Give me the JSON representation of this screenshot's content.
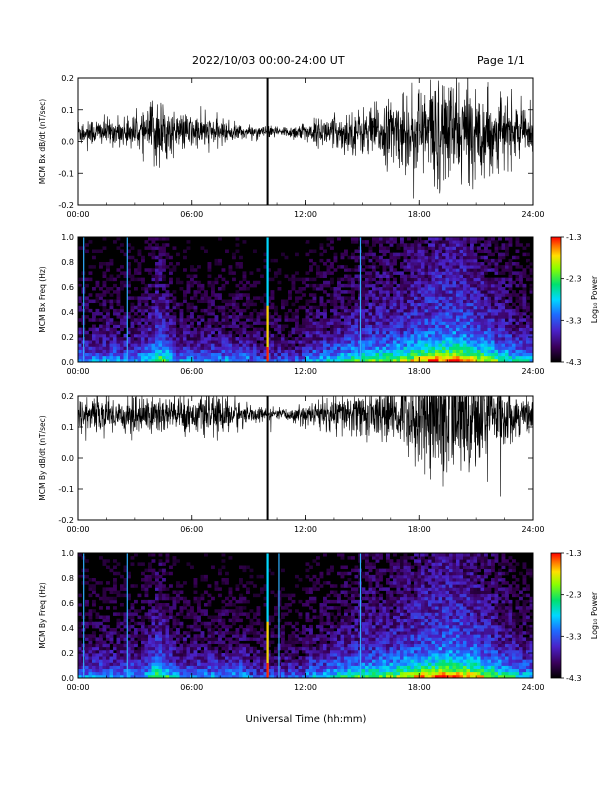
{
  "header": {
    "date_range": "2022/10/03  00:00-24:00 UT",
    "page": "Page 1/1"
  },
  "xlabel": "Universal Time (hh:mm)",
  "chart_data": [
    {
      "type": "line",
      "ylabel": "MCM Bx dB/dt (nT/sec)",
      "xlim": [
        0,
        24
      ],
      "ylim": [
        -0.2,
        0.2
      ],
      "xticks": [
        "00:00",
        "06:00",
        "12:00",
        "18:00",
        "24:00"
      ],
      "yticks": [
        "-0.2",
        "-0.1",
        "0.0",
        "0.1",
        "0.2"
      ],
      "baseline": 0.03,
      "noise_profile": [
        {
          "t": 0,
          "amp": 0.05
        },
        {
          "t": 2,
          "amp": 0.045
        },
        {
          "t": 3.5,
          "amp": 0.06
        },
        {
          "t": 4,
          "amp": 0.12
        },
        {
          "t": 5,
          "amp": 0.07
        },
        {
          "t": 7,
          "amp": 0.05
        },
        {
          "t": 9,
          "amp": 0.02
        },
        {
          "t": 11,
          "amp": 0.02
        },
        {
          "t": 13,
          "amp": 0.05
        },
        {
          "t": 15,
          "amp": 0.08
        },
        {
          "t": 17,
          "amp": 0.12
        },
        {
          "t": 19,
          "amp": 0.2
        },
        {
          "t": 21,
          "amp": 0.15
        },
        {
          "t": 23,
          "amp": 0.1
        },
        {
          "t": 24,
          "amp": 0.06
        }
      ],
      "spike_line_hours": [
        10.0
      ]
    },
    {
      "type": "heatmap",
      "ylabel": "MCM Bx Freq (Hz)",
      "xlim": [
        0,
        24
      ],
      "ylim": [
        0,
        1.0
      ],
      "xticks": [
        "00:00",
        "06:00",
        "12:00",
        "18:00",
        "24:00"
      ],
      "yticks": [
        "0.0",
        "0.2",
        "0.4",
        "0.6",
        "0.8",
        "1.0"
      ],
      "colorbar": {
        "label": "Log₁₀ Power",
        "range": [
          -4.3,
          -1.3
        ],
        "ticks": [
          "-1.3",
          "-2.3",
          "-3.3",
          "-4.3"
        ]
      },
      "vertical_lines_hours": [
        0.3,
        2.6,
        10.0,
        14.9
      ]
    },
    {
      "type": "line",
      "ylabel": "MCM By dB/dt (nT/sec)",
      "xlim": [
        0,
        24
      ],
      "ylim": [
        -0.2,
        0.2
      ],
      "xticks": [
        "00:00",
        "06:00",
        "12:00",
        "18:00",
        "24:00"
      ],
      "yticks": [
        "-0.2",
        "-0.1",
        "0.0",
        "0.1",
        "0.2"
      ],
      "baseline": 0.14,
      "noise_profile": [
        {
          "t": 0,
          "amp": 0.06
        },
        {
          "t": 2,
          "amp": 0.06
        },
        {
          "t": 4,
          "amp": 0.08
        },
        {
          "t": 6,
          "amp": 0.06
        },
        {
          "t": 8,
          "amp": 0.07
        },
        {
          "t": 9,
          "amp": 0.03
        },
        {
          "t": 11,
          "amp": 0.02
        },
        {
          "t": 13,
          "amp": 0.06
        },
        {
          "t": 15,
          "amp": 0.08
        },
        {
          "t": 17,
          "amp": 0.1
        },
        {
          "t": 19,
          "amp": 0.25
        },
        {
          "t": 21,
          "amp": 0.2
        },
        {
          "t": 23,
          "amp": 0.08
        },
        {
          "t": 24,
          "amp": 0.06
        }
      ],
      "spike_line_hours": [
        10.0
      ]
    },
    {
      "type": "heatmap",
      "ylabel": "MCM By Freq (Hz)",
      "xlim": [
        0,
        24
      ],
      "ylim": [
        0,
        1.0
      ],
      "xticks": [
        "00:00",
        "06:00",
        "12:00",
        "18:00",
        "24:00"
      ],
      "yticks": [
        "0.0",
        "0.2",
        "0.4",
        "0.6",
        "0.8",
        "1.0"
      ],
      "colorbar": {
        "label": "Log₁₀ Power",
        "range": [
          -4.3,
          -1.3
        ],
        "ticks": [
          "-1.3",
          "-2.3",
          "-3.3",
          "-4.3"
        ]
      },
      "vertical_lines_hours": [
        0.3,
        2.6,
        10.0,
        10.6,
        14.9
      ]
    }
  ]
}
